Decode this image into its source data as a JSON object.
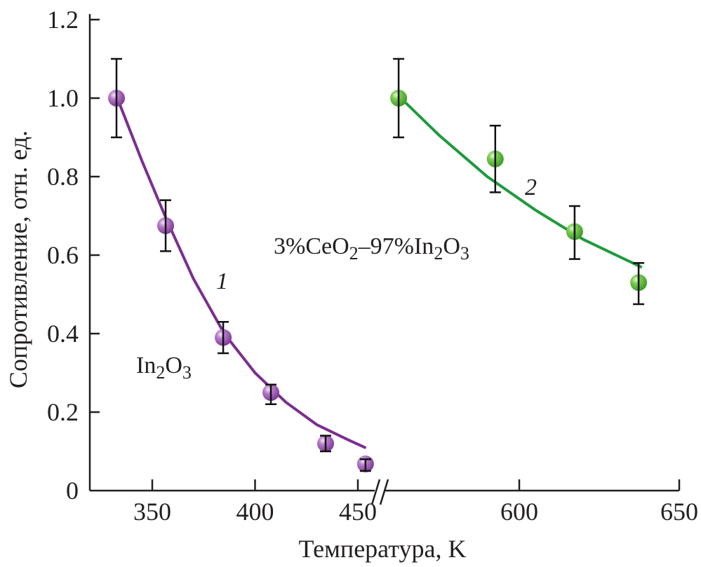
{
  "chart_data": {
    "type": "scatter",
    "title": "",
    "xlabel": "Температура, K",
    "ylabel": "Сопротивление, отн. ед.",
    "ylim": [
      0,
      1.2
    ],
    "yticks": [
      "0",
      "0.2",
      "0.4",
      "0.6",
      "0.8",
      "1.0",
      "1.2"
    ],
    "ytick_values": [
      0,
      0.2,
      0.4,
      0.6,
      0.8,
      1.0,
      1.2
    ],
    "x_segments": [
      {
        "xlim": [
          322,
          458
        ],
        "ticks": [
          350,
          400,
          450
        ],
        "tick_labels": [
          "350",
          "400",
          "450"
        ]
      },
      {
        "xlim": [
          555,
          650
        ],
        "ticks": [
          600,
          650
        ],
        "tick_labels": [
          "600",
          "650"
        ]
      }
    ],
    "axis_break": "between 450 and 600",
    "grid": false,
    "series": [
      {
        "name": "In2O3",
        "number_label": "1",
        "label_main": "In",
        "label_sub1": "2",
        "label_mid": "O",
        "label_sub2": "3",
        "color": "#7b2f8e",
        "marker_color": "#a463b8",
        "segment": 0,
        "points": [
          {
            "x": 332.6,
            "y": 1.0,
            "err_low": 0.9,
            "err_high": 1.1
          },
          {
            "x": 356.5,
            "y": 0.675,
            "err_low": 0.61,
            "err_high": 0.74
          },
          {
            "x": 384.5,
            "y": 0.39,
            "err_low": 0.35,
            "err_high": 0.43
          },
          {
            "x": 407.7,
            "y": 0.25,
            "err_low": 0.22,
            "err_high": 0.27
          },
          {
            "x": 434.3,
            "y": 0.12,
            "err_low": 0.1,
            "err_high": 0.14
          },
          {
            "x": 453.7,
            "y": 0.068,
            "err_low": 0.05,
            "err_high": 0.08
          }
        ],
        "fit": [
          [
            333,
            1.0
          ],
          [
            345,
            0.84
          ],
          [
            357,
            0.69
          ],
          [
            370,
            0.54
          ],
          [
            385,
            0.4
          ],
          [
            400,
            0.3
          ],
          [
            415,
            0.225
          ],
          [
            430,
            0.168
          ],
          [
            445,
            0.13
          ],
          [
            453.4,
            0.11
          ]
        ]
      },
      {
        "name": "3%CeO2–97%In2O3",
        "number_label": "2",
        "label_parts": [
          "3%CeO",
          "2",
          "–97%In",
          "2",
          "O",
          "3"
        ],
        "color": "#1f9a3e",
        "marker_color": "#6cc04a",
        "segment": 1,
        "points": [
          {
            "x": 562.3,
            "y": 1.0,
            "err_low": 0.9,
            "err_high": 1.1
          },
          {
            "x": 592.5,
            "y": 0.845,
            "err_low": 0.76,
            "err_high": 0.93
          },
          {
            "x": 617.3,
            "y": 0.66,
            "err_low": 0.59,
            "err_high": 0.725
          },
          {
            "x": 637.3,
            "y": 0.53,
            "err_low": 0.475,
            "err_high": 0.58
          }
        ],
        "fit": [
          [
            563,
            1.0
          ],
          [
            575,
            0.905
          ],
          [
            590,
            0.8
          ],
          [
            605,
            0.715
          ],
          [
            620,
            0.64
          ],
          [
            638,
            0.57
          ]
        ]
      }
    ]
  }
}
